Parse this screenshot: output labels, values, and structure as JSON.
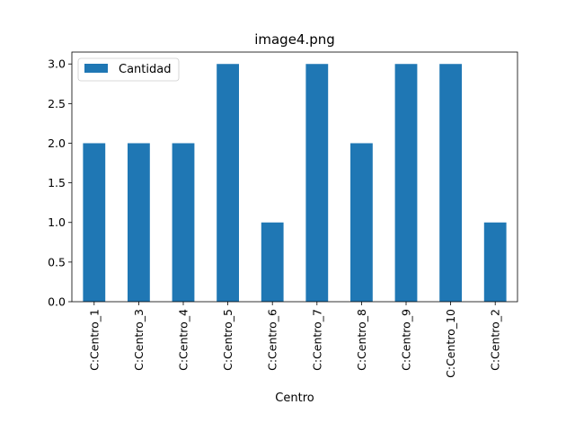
{
  "chart_data": {
    "type": "bar",
    "title": "image4.png",
    "xlabel": "Centro",
    "ylabel": "",
    "categories": [
      "C:Centro_1",
      "C:Centro_3",
      "C:Centro_4",
      "C:Centro_5",
      "C:Centro_6",
      "C:Centro_7",
      "C:Centro_8",
      "C:Centro_9",
      "C:Centro_10",
      "C:Centro_2"
    ],
    "series": [
      {
        "name": "Cantidad",
        "color": "#1f77b4",
        "values": [
          2,
          2,
          2,
          3,
          1,
          3,
          2,
          3,
          3,
          1
        ]
      }
    ],
    "ylim": [
      0,
      3.15
    ],
    "yticks": [
      "0.0",
      "0.5",
      "1.0",
      "1.5",
      "2.0",
      "2.5",
      "3.0"
    ],
    "grid": false,
    "legend_position": "top-left"
  }
}
